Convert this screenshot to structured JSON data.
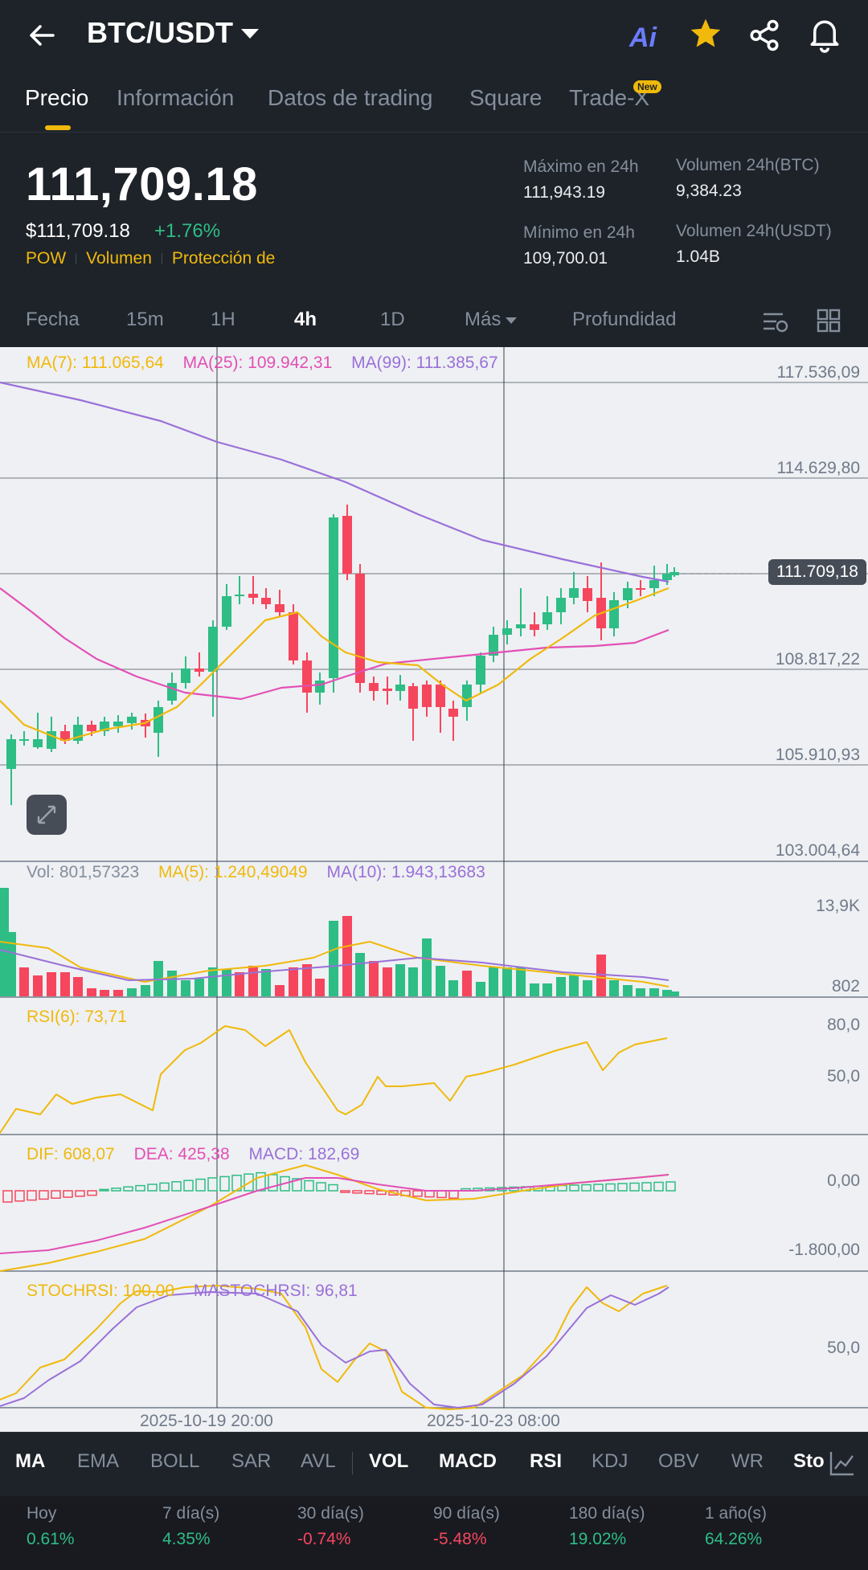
{
  "header": {
    "pair": "BTC/USDT",
    "ai_label": "Ai"
  },
  "tabs": [
    {
      "label": "Precio",
      "active": true
    },
    {
      "label": "Información"
    },
    {
      "label": "Datos de trading"
    },
    {
      "label": "Square"
    },
    {
      "label": "Trade-X"
    }
  ],
  "new_badge": "New",
  "price": {
    "last": "111,709.18",
    "usd": "$111,709.18",
    "change": "+1.76%",
    "tags": [
      "POW",
      "Volumen",
      "Protección de"
    ]
  },
  "stats": {
    "high_label": "Máximo en 24h",
    "high_value": "111,943.19",
    "low_label": "Mínimo en 24h",
    "low_value": "109,700.01",
    "vol_btc_label": "Volumen 24h(BTC)",
    "vol_btc_value": "9,384.23",
    "vol_usdt_label": "Volumen 24h(USDT)",
    "vol_usdt_value": "1.04B"
  },
  "intervals": [
    "Fecha",
    "15m",
    "1H",
    "4h",
    "1D",
    "Más",
    "Profundidad"
  ],
  "active_interval": "4h",
  "chart": {
    "ma_legend": {
      "ma7": "MA(7): 111.065,64",
      "ma25": "MA(25): 109.942,31",
      "ma99": "MA(99): 111.385,67"
    },
    "price_axis": [
      "117.536,09",
      "114.629,80",
      "108.817,22",
      "105.910,93",
      "103.004,64"
    ],
    "last_price_tag": "111.709,18",
    "vol_legend": {
      "vol": "Vol: 801,57323",
      "ma5": "MA(5): 1.240,49049",
      "ma10": "MA(10): 1.943,13683"
    },
    "vol_axis": [
      "13,9K",
      "802"
    ],
    "rsi_legend": "RSI(6): 73,71",
    "rsi_axis": [
      "80,0",
      "50,0"
    ],
    "macd_legend": {
      "dif": "DIF: 608,07",
      "dea": "DEA: 425,38",
      "macd": "MACD: 182,69"
    },
    "macd_axis": [
      "0,00",
      "-1.800,00"
    ],
    "stoch_legend": {
      "stoch": "STOCHRSI: 100,00",
      "ma": "MASTOCHRSI: 96,81"
    },
    "stoch_axis": [
      "50,0"
    ],
    "dates": [
      "2025-10-19 20:00",
      "2025-10-23 08:00"
    ]
  },
  "indicators": [
    {
      "label": "MA",
      "on": true
    },
    {
      "label": "EMA"
    },
    {
      "label": "BOLL"
    },
    {
      "label": "SAR"
    },
    {
      "label": "AVL"
    },
    {
      "label": "VOL",
      "on": true
    },
    {
      "label": "MACD",
      "on": true
    },
    {
      "label": "RSI",
      "on": true
    },
    {
      "label": "KDJ"
    },
    {
      "label": "OBV"
    },
    {
      "label": "WR"
    },
    {
      "label": "Sto"
    }
  ],
  "performance": [
    {
      "label": "Hoy",
      "value": "0.61%",
      "dir": "up"
    },
    {
      "label": "7 día(s)",
      "value": "4.35%",
      "dir": "up"
    },
    {
      "label": "30 día(s)",
      "value": "-0.74%",
      "dir": "down"
    },
    {
      "label": "90 día(s)",
      "value": "-5.48%",
      "dir": "down"
    },
    {
      "label": "180 día(s)",
      "value": "19.02%",
      "dir": "up"
    },
    {
      "label": "1 año(s)",
      "value": "64.26%",
      "dir": "up"
    }
  ],
  "colors": {
    "up": "#2ebd85",
    "down": "#f6465d",
    "accent": "#f0b90b",
    "ma7": "#f0b90b",
    "ma25": "#e34fb5",
    "ma99": "#9a70d9"
  }
}
